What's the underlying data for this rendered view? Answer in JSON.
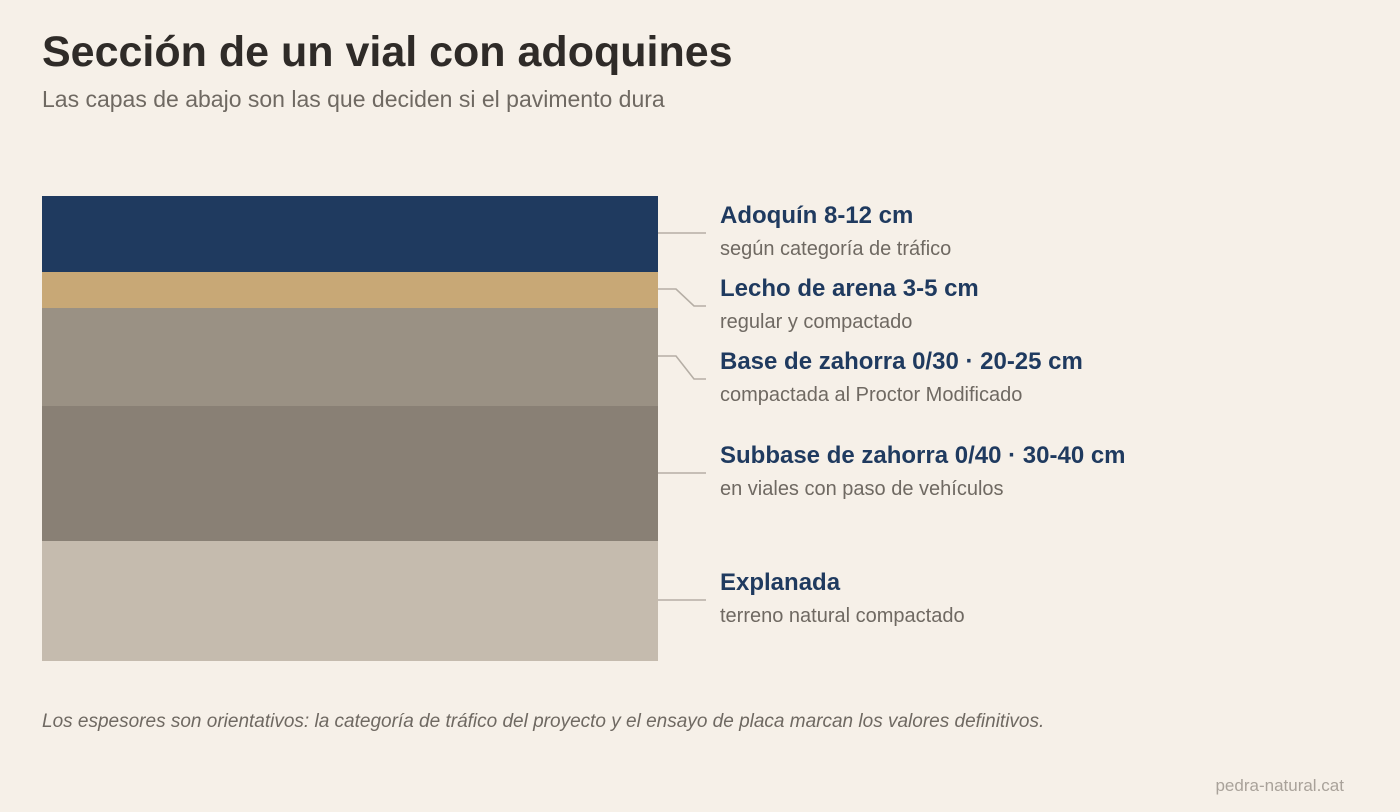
{
  "header": {
    "title": "Sección de un vial con adoquines",
    "subtitle": "Las capas de abajo son las que deciden si el pavimento dura"
  },
  "layers": [
    {
      "name": "Adoquín 8-12 cm",
      "description": "según categoría de tráfico",
      "color": "#1f3a5f"
    },
    {
      "name": "Lecho de arena 3-5 cm",
      "description": "regular y compactado",
      "color": "#c8a876"
    },
    {
      "name": "Base de zahorra 0/30 · 20-25 cm",
      "description": "compactada al Proctor Modificado",
      "color": "#9a9184"
    },
    {
      "name": "Subbase de zahorra 0/40 · 30-40 cm",
      "description": "en viales con paso de vehículos",
      "color": "#898075"
    },
    {
      "name": "Explanada",
      "description": "terreno natural compactado",
      "color": "#c5bbae"
    }
  ],
  "connector_color": "#b5aea5",
  "footer": {
    "note": "Los espesores son orientativos: la categoría de tráfico del proyecto y el ensayo de placa marcan los valores definitivos.",
    "credit": "pedra-natural.cat"
  }
}
